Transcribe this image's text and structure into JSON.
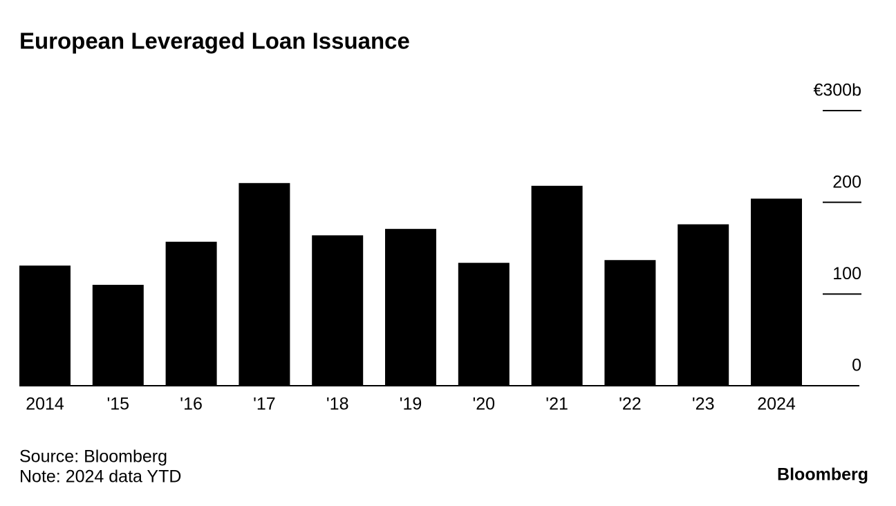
{
  "chart_data": {
    "type": "bar",
    "title": "European Leveraged Loan Issuance",
    "categories": [
      "2014",
      "'15",
      "'16",
      "'17",
      "'18",
      "'19",
      "'20",
      "'21",
      "'22",
      "'23",
      "2024"
    ],
    "values": [
      131,
      110,
      157,
      221,
      164,
      171,
      134,
      218,
      137,
      176,
      204
    ],
    "color": "#000000",
    "ylim": [
      0,
      300
    ],
    "yticks": [
      0,
      100,
      200,
      {
        "value": 300,
        "label": "€300b"
      }
    ],
    "source": "Source: Bloomberg",
    "note": "Note: 2024 data YTD",
    "logo": "Bloomberg"
  }
}
